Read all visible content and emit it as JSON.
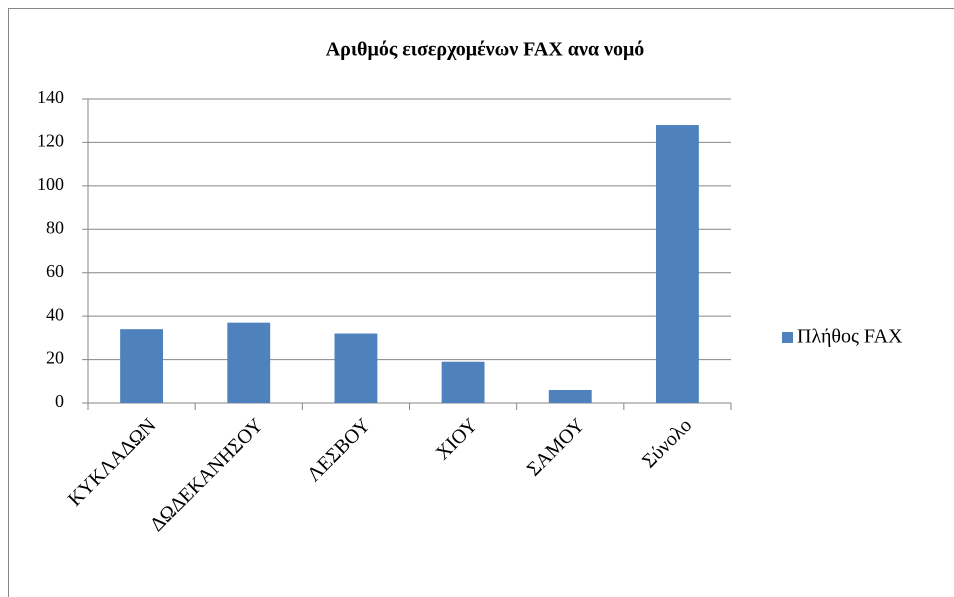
{
  "chart_data": {
    "type": "bar",
    "title": "Αριθμός εισερχομένων FAX ανα νομό",
    "categories": [
      "ΚΥΚΛΑΔΩΝ",
      "ΔΩΔΕΚΑΝΗΣΟΥ",
      "ΛΕΣΒΟΥ",
      "ΧΙΟΥ",
      "ΣΑΜΟΥ",
      "Σύνολο"
    ],
    "series": [
      {
        "name": "Πλήθος FAX",
        "color": "#4f81bd",
        "values": [
          34,
          37,
          32,
          19,
          6,
          128
        ]
      }
    ],
    "ylim": [
      0,
      140
    ],
    "yticks": [
      0,
      20,
      40,
      60,
      80,
      100,
      120,
      140
    ],
    "grid": true,
    "legend": "right"
  }
}
